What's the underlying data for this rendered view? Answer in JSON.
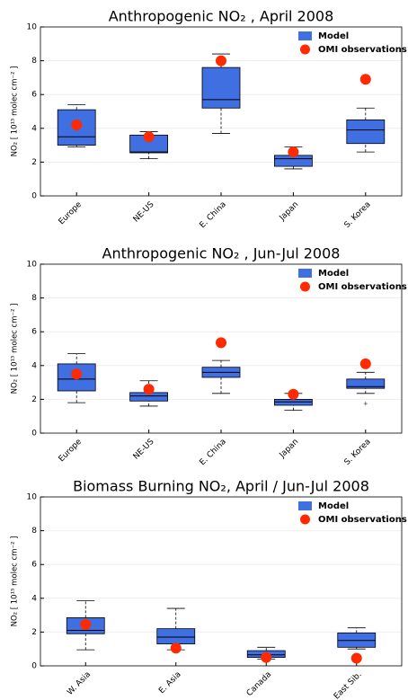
{
  "chart_data": [
    {
      "type": "box",
      "title": "Anthropogenic NO₂ , April 2008",
      "ylabel": "NO₂ [ 10¹⁵ molec cm⁻² ]",
      "categories": [
        "Europe",
        "NE-US",
        "E. China",
        "Japan",
        "S. Korea"
      ],
      "series": [
        {
          "name": "Model",
          "color": "#3f6fe0",
          "stats": [
            [
              2.9,
              3.0,
              3.5,
              5.1,
              5.4
            ],
            [
              2.2,
              2.55,
              2.6,
              3.6,
              3.8
            ],
            [
              3.7,
              5.2,
              5.7,
              7.6,
              8.4
            ],
            [
              1.6,
              1.75,
              2.2,
              2.4,
              2.9
            ],
            [
              2.6,
              3.1,
              3.9,
              4.5,
              5.2
            ]
          ]
        },
        {
          "name": "OMI observations",
          "color": "#ff2a00",
          "values": [
            4.2,
            3.5,
            8.0,
            2.6,
            6.9
          ]
        }
      ],
      "ylim": [
        0,
        10
      ],
      "yticks": [
        0,
        2,
        4,
        6,
        8,
        10
      ],
      "grid": true,
      "legend": "upper right"
    },
    {
      "type": "box",
      "title": "Anthropogenic NO₂ , Jun-Jul 2008",
      "ylabel": "NO₂ [ 10¹⁵ molec cm⁻² ]",
      "categories": [
        "Europe",
        "NE-US",
        "E. China",
        "Japan",
        "S. Korea"
      ],
      "series": [
        {
          "name": "Model",
          "color": "#3f6fe0",
          "stats": [
            [
              1.8,
              2.5,
              3.2,
              4.1,
              4.7
            ],
            [
              1.6,
              1.9,
              2.2,
              2.4,
              3.1
            ],
            [
              2.35,
              3.3,
              3.6,
              3.9,
              4.3
            ],
            [
              1.35,
              1.65,
              1.85,
              2.0,
              2.35
            ],
            [
              2.35,
              2.65,
              2.75,
              3.2,
              3.6
            ]
          ],
          "outliers": [
            [],
            [],
            [],
            [],
            [
              1.75
            ]
          ]
        },
        {
          "name": "OMI observations",
          "color": "#ff2a00",
          "values": [
            3.5,
            2.6,
            5.35,
            2.3,
            4.1
          ]
        }
      ],
      "ylim": [
        0,
        10
      ],
      "yticks": [
        0,
        2,
        4,
        6,
        8,
        10
      ],
      "grid": true,
      "legend": "upper right"
    },
    {
      "type": "box",
      "title": "Biomass Burning NO₂, April / Jun-Jul  2008",
      "ylabel": "NO₂ [ 10¹⁵ molec cm⁻² ]",
      "categories": [
        "W. Asia",
        "E. Asia",
        "Canada",
        "East Sib."
      ],
      "series": [
        {
          "name": "Model",
          "color": "#3f6fe0",
          "stats": [
            [
              0.95,
              1.9,
              2.1,
              2.85,
              3.85
            ],
            [
              0.95,
              1.3,
              1.7,
              2.2,
              3.4
            ],
            [
              0.4,
              0.5,
              0.65,
              0.9,
              1.1
            ],
            [
              1.0,
              1.1,
              1.5,
              1.95,
              2.25
            ]
          ]
        },
        {
          "name": "OMI observations",
          "color": "#ff2a00",
          "values": [
            2.45,
            1.05,
            0.5,
            0.45
          ]
        }
      ],
      "ylim": [
        0,
        10
      ],
      "yticks": [
        0,
        2,
        4,
        6,
        8,
        10
      ],
      "grid": true,
      "legend": "upper right"
    }
  ]
}
